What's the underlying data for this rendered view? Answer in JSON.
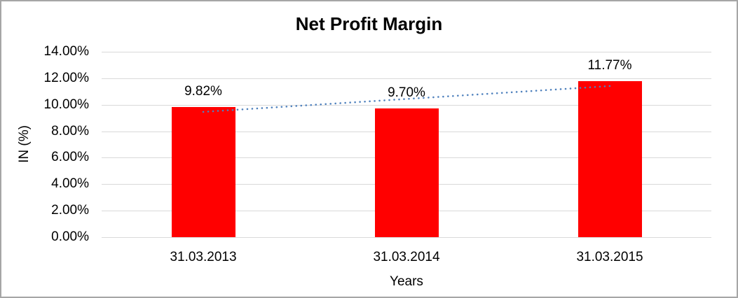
{
  "chart_data": {
    "type": "bar",
    "title": "Net Profit Margin",
    "categories": [
      "31.03.2013",
      "31.03.2014",
      "31.03.2015"
    ],
    "values": [
      9.82,
      9.7,
      11.77
    ],
    "bar_labels": [
      "9.82%",
      "9.70%",
      "11.77%"
    ],
    "xlabel": "Years",
    "ylabel": "IN (%)",
    "ylim": [
      0,
      14
    ],
    "yticks": [
      0,
      2,
      4,
      6,
      8,
      10,
      12,
      14
    ],
    "ytick_labels": [
      "0.00%",
      "2.00%",
      "4.00%",
      "6.00%",
      "8.00%",
      "10.00%",
      "12.00%",
      "14.00%"
    ],
    "grid": true,
    "legend": false,
    "trendline": {
      "type": "linear",
      "style": "dotted",
      "start_value": 9.46,
      "end_value": 11.41,
      "color": "#4f81bd"
    },
    "colors": {
      "bar": "#ff0000",
      "gridline": "#d9d9d9",
      "text": "#000000",
      "frame_border": "#a6a6a6",
      "background": "#ffffff"
    }
  }
}
